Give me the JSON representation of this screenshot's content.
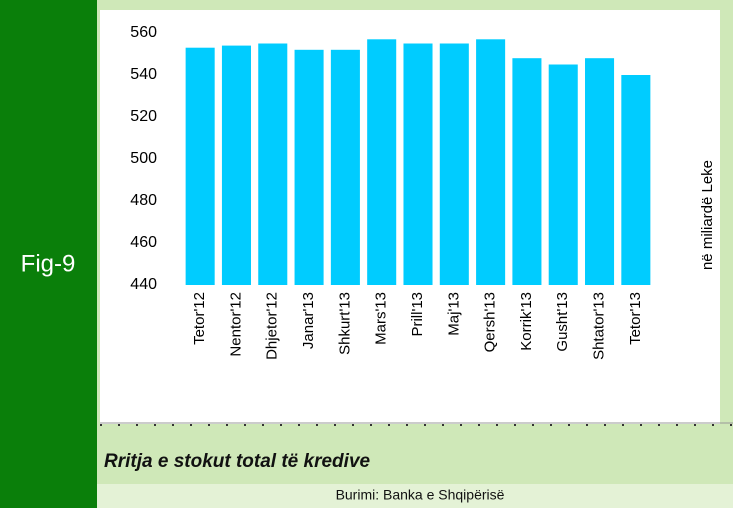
{
  "figure_label": "Fig-9",
  "footer": {
    "title": "Rritja e stokut total të kredive",
    "source": "Burimi: Banka e Shqipërisë"
  },
  "chart_data": {
    "type": "bar",
    "y_label": "në miliardë Leke",
    "categories": [
      "Tetor'12",
      "Nentor'12",
      "Dhjetor'12",
      "Janar'13",
      "Shkurt'13",
      "Mars'13",
      "Prill'13",
      "Maj'13",
      "Qersh'13",
      "Korrik'13",
      "Gusht'13",
      "Shtator'13",
      "Tetor'13"
    ],
    "values": [
      553,
      554,
      555,
      552,
      552,
      557,
      555,
      555,
      557,
      548,
      545,
      548,
      540
    ],
    "color": "#00ccff",
    "ylim": [
      440,
      560
    ],
    "yticks": [
      440,
      460,
      480,
      500,
      520,
      540,
      560
    ],
    "grid": false
  }
}
